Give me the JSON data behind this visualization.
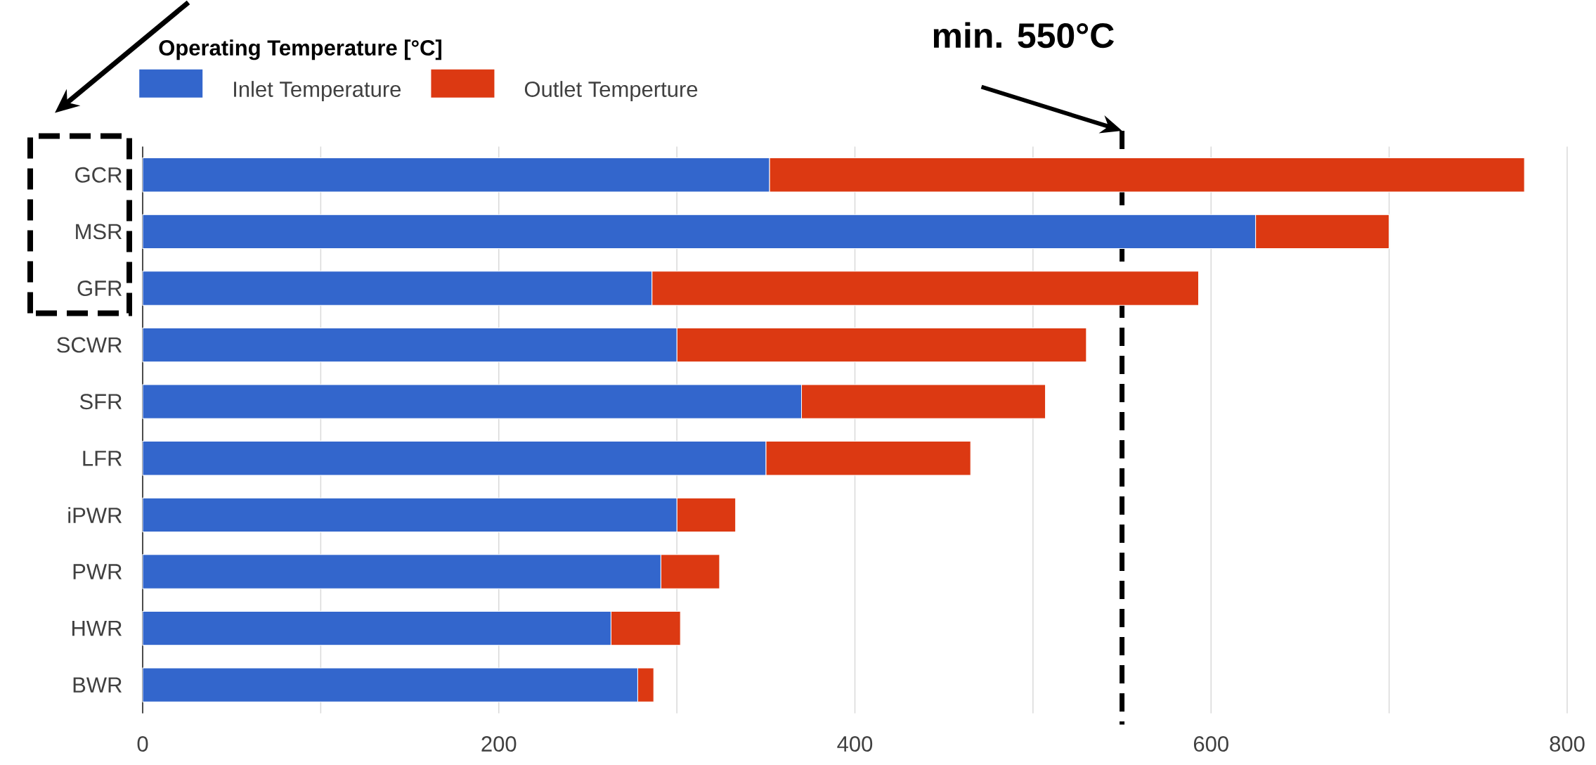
{
  "chart_data": {
    "type": "bar",
    "orientation": "horizontal",
    "stacked": true,
    "title": "Operating Temperature [°C]",
    "categories": [
      "GCR",
      "MSR",
      "GFR",
      "SCWR",
      "SFR",
      "LFR",
      "iPWR",
      "PWR",
      "HWR",
      "BWR"
    ],
    "series": [
      {
        "name": "Inlet Temperature",
        "color": "#3366cc",
        "values": [
          352,
          625,
          286,
          300,
          370,
          350,
          300,
          291,
          263,
          278
        ]
      },
      {
        "name": "Outlet Temperture",
        "color": "#dc3912",
        "values": [
          424,
          75,
          307,
          230,
          137,
          115,
          33,
          33,
          39,
          9
        ]
      }
    ],
    "xlim": [
      0,
      800
    ],
    "xticks": [
      0,
      {
        "value": 100,
        "label": null
      },
      200,
      {
        "value": 300,
        "label": null
      },
      400,
      {
        "value": 500,
        "label": null
      },
      600,
      {
        "value": 700,
        "label": null
      },
      800
    ],
    "grid": "x",
    "legend": "top left",
    "ref_lines": [
      {
        "axis": "x",
        "value": 550,
        "label": "min. 550°C",
        "color": "#000000",
        "line_style": "dashed"
      }
    ]
  }
}
